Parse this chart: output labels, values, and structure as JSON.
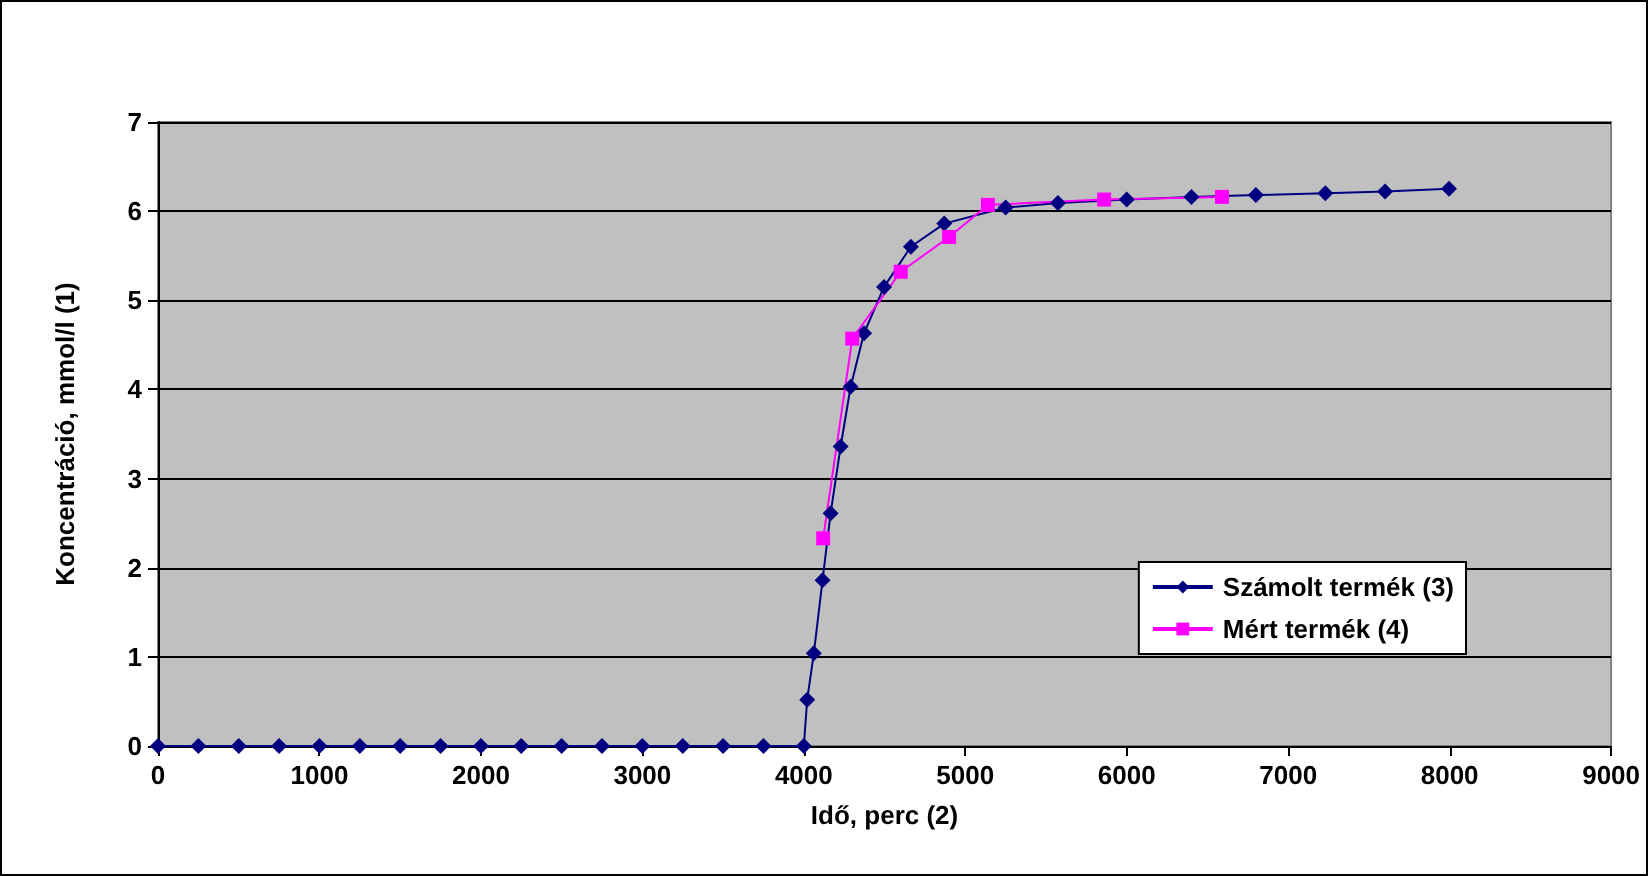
{
  "chart_data": {
    "type": "line",
    "xlabel": "Idő, perc (2)",
    "ylabel": "Koncentráció, mmol/l (1)",
    "xlim": [
      0,
      9000
    ],
    "xticks": [
      0,
      1000,
      2000,
      3000,
      4000,
      5000,
      6000,
      7000,
      8000,
      9000
    ],
    "ylim": [
      0,
      7
    ],
    "yticks": [
      0,
      1,
      2,
      3,
      4,
      5,
      6,
      7
    ],
    "grid": "y",
    "legend": "bottom right",
    "series": [
      {
        "name": "Számolt termék (3)",
        "color": "#000080",
        "marker": "diamond",
        "x": [
          0,
          250,
          500,
          750,
          1000,
          1250,
          1500,
          1750,
          2000,
          2250,
          2500,
          2750,
          3000,
          3250,
          3500,
          3750,
          4000,
          4021,
          4062,
          4116,
          4166,
          4228,
          4290,
          4373,
          4497,
          4663,
          4870,
          5250,
          5574,
          6000,
          6401,
          6800,
          7230,
          7600,
          7996
        ],
        "values": [
          0,
          0,
          0,
          0,
          0,
          0,
          0,
          0,
          0,
          0,
          0,
          0,
          0,
          0,
          0,
          0,
          0,
          0.52,
          1.04,
          1.86,
          2.61,
          3.36,
          4.03,
          4.63,
          5.15,
          5.6,
          5.86,
          6.04,
          6.09,
          6.13,
          6.16,
          6.18,
          6.2,
          6.22,
          6.25
        ]
      },
      {
        "name": "Mért termék (4)",
        "color": "#ff00ff",
        "marker": "square",
        "x": [
          4120,
          4300,
          4600,
          4900,
          5140,
          5860,
          6590
        ],
        "values": [
          2.33,
          4.57,
          5.32,
          5.71,
          6.07,
          6.13,
          6.16
        ]
      }
    ]
  }
}
